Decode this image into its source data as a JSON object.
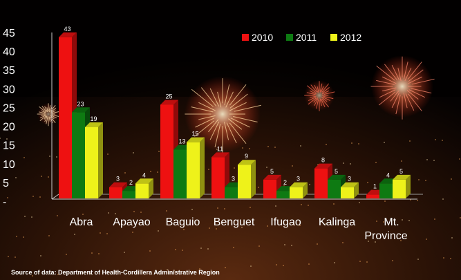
{
  "chart_data": {
    "type": "bar",
    "categories": [
      "Abra",
      "Apayao",
      "Baguio",
      "Benguet",
      "Ifugao",
      "Kalinga",
      "Mt. Province"
    ],
    "series": [
      {
        "name": "2010",
        "color": "#ee1111",
        "values": [
          43,
          3,
          25,
          11,
          5,
          8,
          1
        ]
      },
      {
        "name": "2011",
        "color": "#0e7a12",
        "values": [
          23,
          2,
          13,
          3,
          2,
          5,
          4
        ]
      },
      {
        "name": "2012",
        "color": "#eef21a",
        "values": [
          19,
          4,
          15,
          9,
          3,
          3,
          5
        ]
      }
    ],
    "yticks": [
      "-",
      "5",
      "10",
      "15",
      "20",
      "25",
      "30",
      "35",
      "40",
      "45"
    ],
    "ylim": [
      0,
      45
    ],
    "legend_position": "top-right",
    "grid": false
  },
  "source": "Source of data: Department of Health-Cordillera Administrative Region"
}
